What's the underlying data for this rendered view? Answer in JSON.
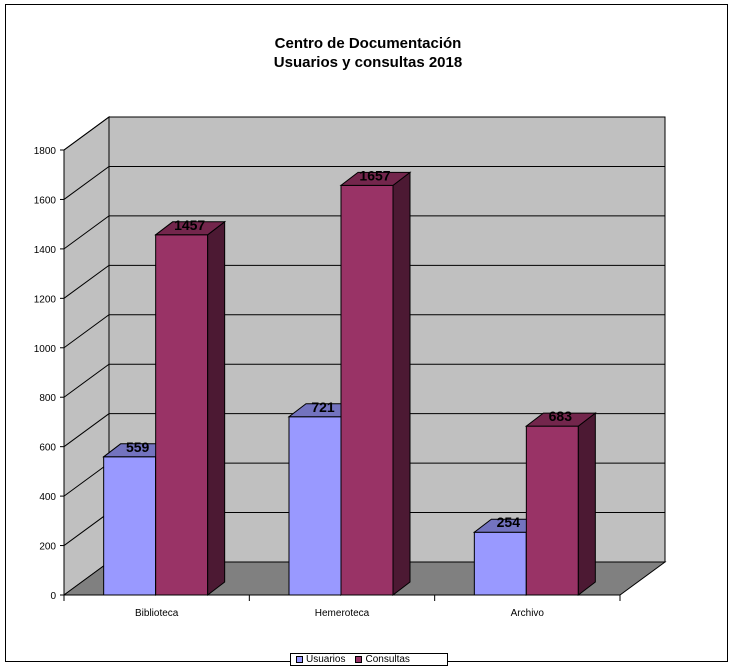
{
  "chart_data": {
    "type": "bar",
    "title": "Centro de Documentación",
    "subtitle": "Usuarios y consultas 2018",
    "categories": [
      "Biblioteca",
      "Hemeroteca",
      "Archivo"
    ],
    "series": [
      {
        "name": "Usuarios",
        "values": [
          559,
          721,
          254
        ],
        "labels": [
          "559",
          "721",
          "254"
        ],
        "color": "#9999ff",
        "side_color": "#4c4c80",
        "top_color": "#7373bf"
      },
      {
        "name": "Consultas",
        "values": [
          1457,
          1657,
          683
        ],
        "labels": [
          "1457",
          "1657",
          "683"
        ],
        "color": "#993366",
        "side_color": "#4c1933",
        "top_color": "#73264c"
      }
    ],
    "ylim": [
      0,
      1800
    ],
    "yticks": [
      0,
      200,
      400,
      600,
      800,
      1000,
      1200,
      1400,
      1600,
      1800
    ],
    "ytick_labels": [
      "0",
      "200",
      "400",
      "600",
      "800",
      "1000",
      "1200",
      "1400",
      "1600",
      "1800"
    ],
    "grid": true,
    "wall_color": "#c0c0c0",
    "floor_color": "#808080",
    "legend_position": "bottom",
    "style": "3d-clustered-column"
  }
}
